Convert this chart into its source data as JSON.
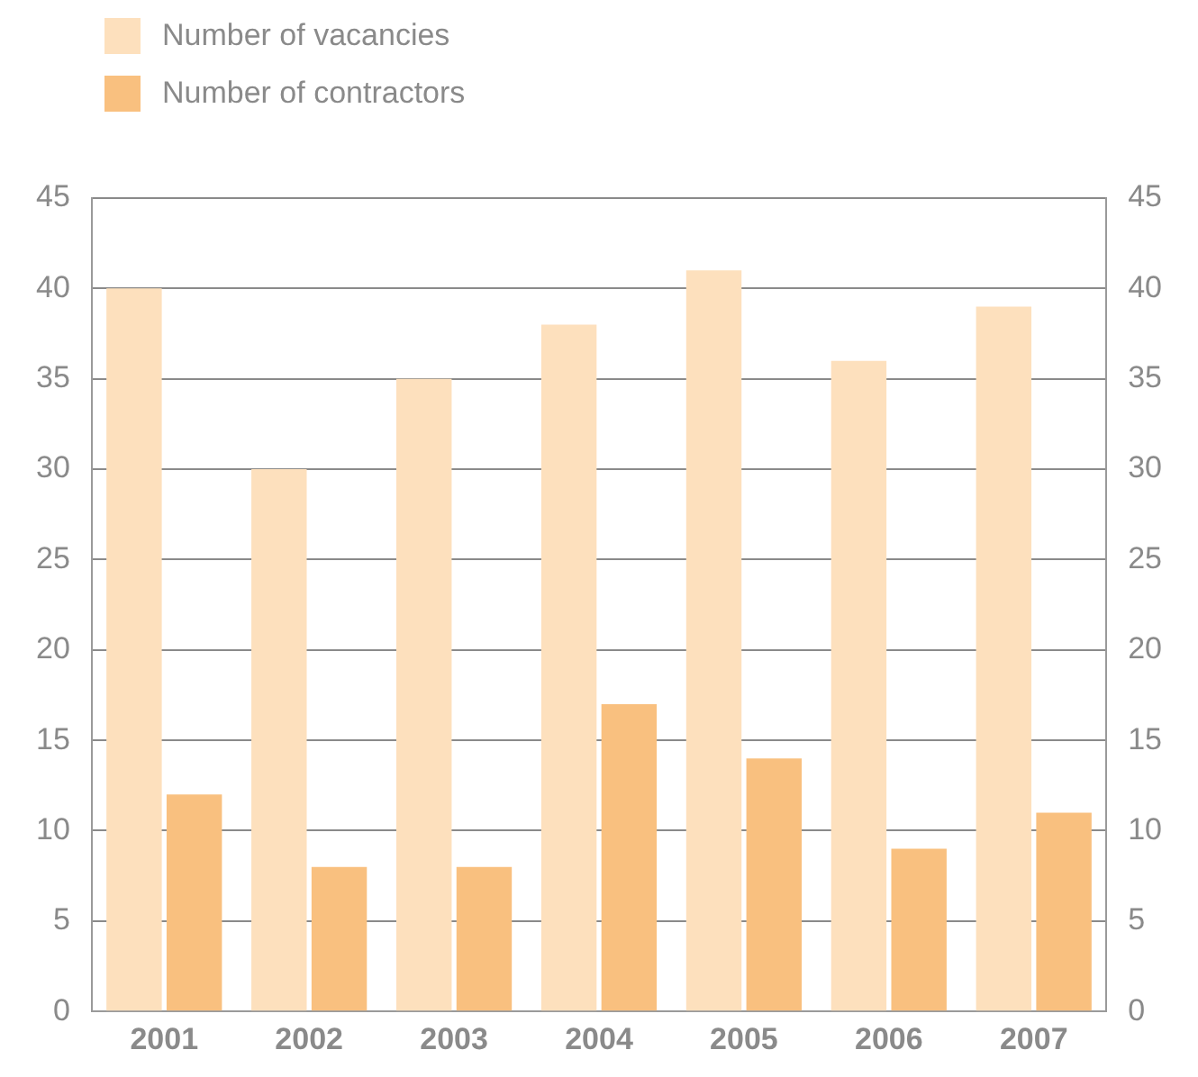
{
  "chart_data": {
    "type": "bar",
    "categories": [
      "2001",
      "2002",
      "2003",
      "2004",
      "2005",
      "2006",
      "2007"
    ],
    "series": [
      {
        "name": "Number of vacancies",
        "color": "#fde0bd",
        "values": [
          40,
          30,
          35,
          38,
          41,
          36,
          39
        ]
      },
      {
        "name": "Number of contractors",
        "color": "#f9c07f",
        "values": [
          12,
          8,
          8,
          17,
          14,
          9,
          11
        ]
      }
    ],
    "ylim": [
      0,
      45
    ],
    "yticks": [
      0,
      5,
      10,
      15,
      20,
      25,
      30,
      35,
      40,
      45
    ],
    "y2lim": [
      0,
      45
    ],
    "y2ticks": [
      0,
      5,
      10,
      15,
      20,
      25,
      30,
      35,
      40,
      45
    ],
    "grid": "y",
    "legend": "top left"
  }
}
